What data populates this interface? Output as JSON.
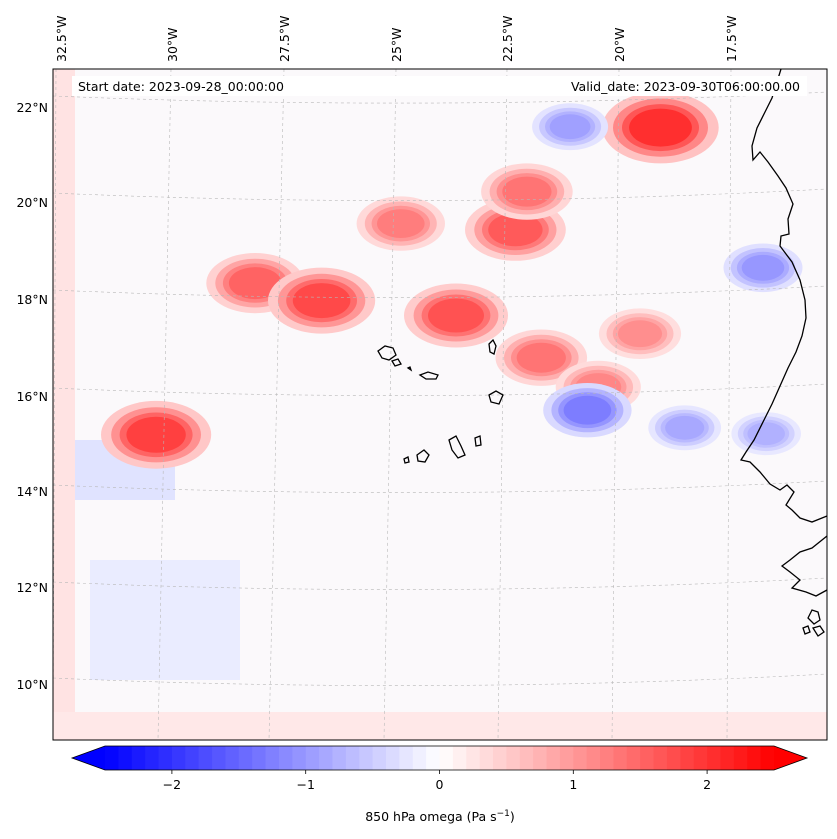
{
  "map": {
    "start_date": "Start date: 2023-09-28_00:00:00",
    "valid_date": "Valid_date: 2023-09-30T06:00:00.00",
    "lon_labels": [
      "32.5°W",
      "30°W",
      "27.5°W",
      "25°W",
      "22.5°W",
      "20°W",
      "17.5°W"
    ],
    "lat_labels": [
      "22°N",
      "20°N",
      "18°N",
      "16°N",
      "14°N",
      "12°N",
      "10°N"
    ],
    "gridlines": true
  },
  "colorbar": {
    "label": "850 hPa omega (Pa s",
    "label_sup": "−1",
    "label_close": ")",
    "ticks": [
      "−2",
      "−1",
      "0",
      "1",
      "2"
    ],
    "tick_values": [
      -2,
      -1,
      0,
      1,
      2
    ],
    "range": [
      -2.5,
      2.5
    ],
    "colormap": "bwr",
    "colors": {
      "low": "#0000ff",
      "mid": "#ffffff",
      "high": "#ff0000"
    },
    "extend": "both"
  },
  "chart_data": {
    "type": "heatmap",
    "variable": "850 hPa omega",
    "units": "Pa s^-1",
    "lon_range": [
      -33,
      -15
    ],
    "lat_range": [
      9,
      22.5
    ],
    "value_range": [
      -2.5,
      2.5
    ],
    "features": [
      {
        "lon": -19.7,
        "lat": 21.9,
        "value": 2.4
      },
      {
        "lon": -28.0,
        "lat": 18.6,
        "value": 1.8
      },
      {
        "lon": -26.6,
        "lat": 18.1,
        "value": 2.1
      },
      {
        "lon": -23.7,
        "lat": 17.7,
        "value": 2.0
      },
      {
        "lon": -22.5,
        "lat": 19.5,
        "value": 1.9
      },
      {
        "lon": -22.3,
        "lat": 20.3,
        "value": 1.6
      },
      {
        "lon": -24.9,
        "lat": 19.6,
        "value": 1.5
      },
      {
        "lon": -21.8,
        "lat": 16.9,
        "value": 1.6
      },
      {
        "lon": -20.5,
        "lat": 16.4,
        "value": 1.4
      },
      {
        "lon": -30.4,
        "lat": 15.8,
        "value": 2.2
      },
      {
        "lon": -19.7,
        "lat": 17.6,
        "value": 1.3
      },
      {
        "lon": -20.7,
        "lat": 15.9,
        "value": -1.5
      },
      {
        "lon": -21.5,
        "lat": 21.7,
        "value": -1.1
      },
      {
        "lon": -17.3,
        "lat": 19.4,
        "value": -1.2
      },
      {
        "lon": -18.5,
        "lat": 15.8,
        "value": -1.0
      },
      {
        "lon": -16.7,
        "lat": 16.0,
        "value": -0.9
      }
    ]
  }
}
